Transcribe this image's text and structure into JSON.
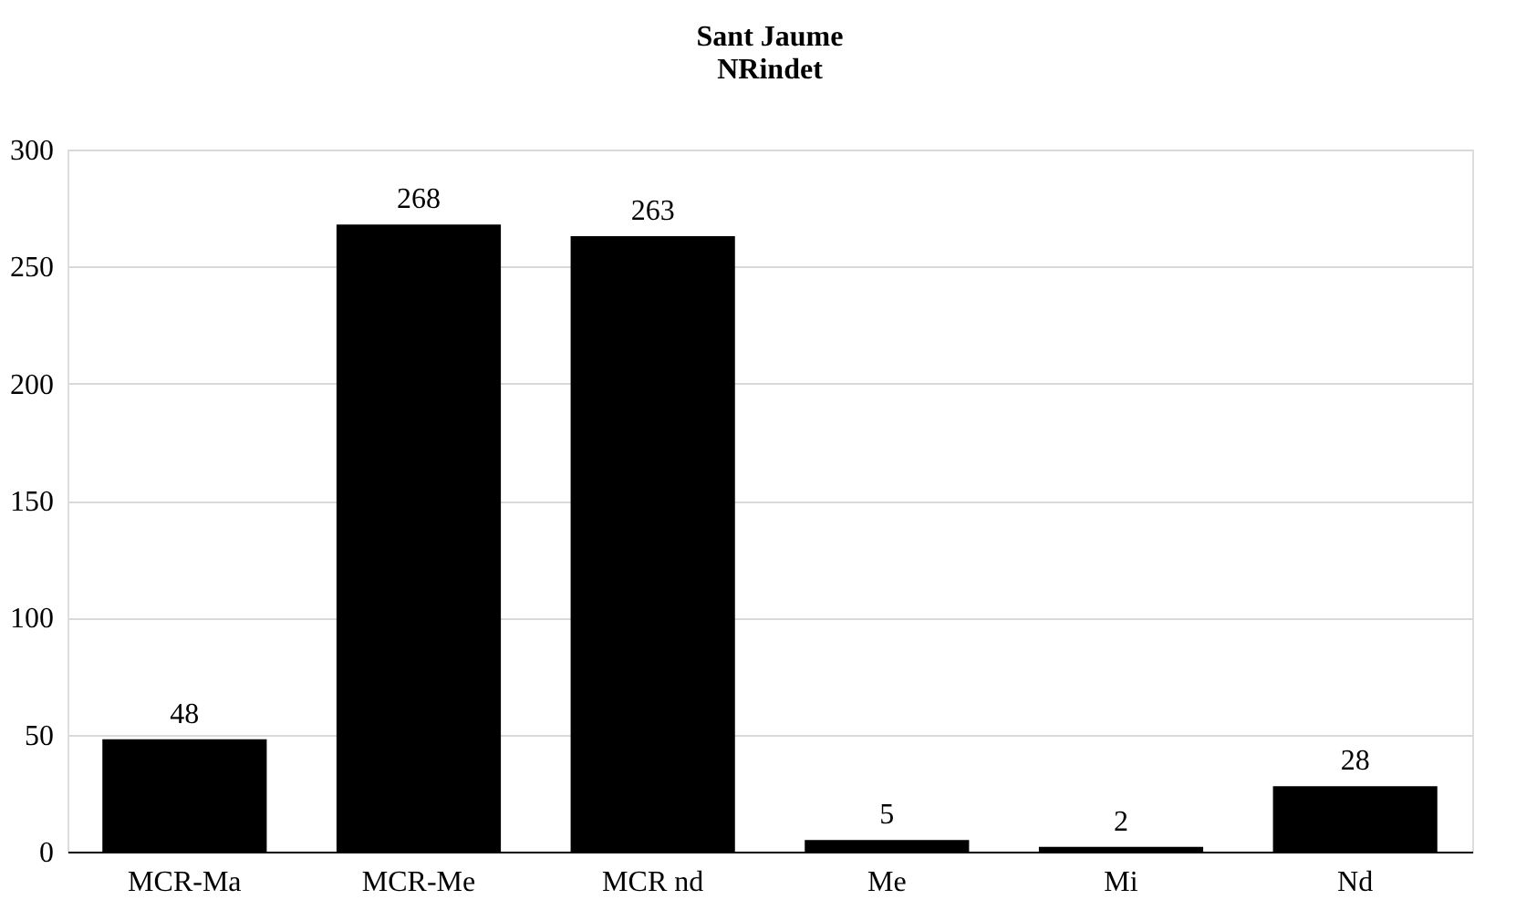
{
  "chart_data": {
    "type": "bar",
    "title": "Sant Jaume",
    "subtitle": "NRindet",
    "categories": [
      "MCR-Ma",
      "MCR-Me",
      "MCR nd",
      "Me",
      "Mi",
      "Nd"
    ],
    "values": [
      48,
      268,
      263,
      5,
      2,
      28
    ],
    "color": "#000000",
    "ylim": [
      0,
      300
    ],
    "yticks": [
      0,
      50,
      100,
      150,
      200,
      250,
      300
    ],
    "grid": "y",
    "data_labels": true
  }
}
